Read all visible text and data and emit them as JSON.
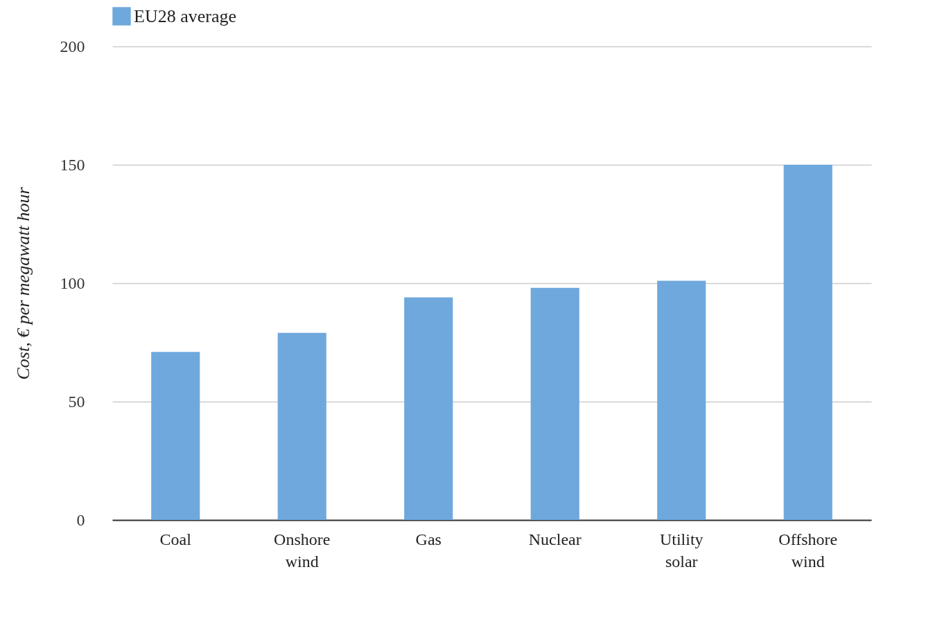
{
  "chart_data": {
    "type": "bar",
    "ylabel": "Cost, € per megawatt hour",
    "categories": [
      "Coal",
      "Onshore wind",
      "Gas",
      "Nuclear",
      "Utility solar",
      "Offshore wind"
    ],
    "series": [
      {
        "name": "EU28 average",
        "color": "#6fa8dc",
        "values": [
          71,
          79,
          94,
          98,
          101,
          150
        ]
      }
    ],
    "ylim": [
      0,
      200
    ],
    "yticks": [
      0,
      50,
      100,
      150,
      200
    ],
    "grid": "y",
    "legend": "top left"
  }
}
